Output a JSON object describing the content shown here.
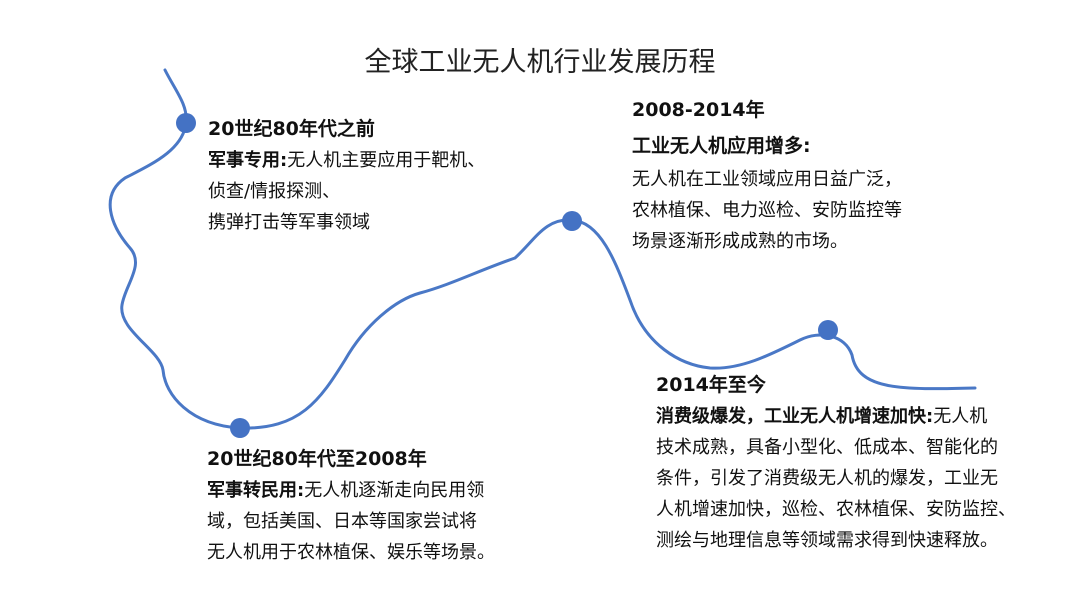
{
  "title": "全球工业无人机行业发展历程",
  "colors": {
    "curve": "#4a78c6",
    "dot": "#4472c4"
  },
  "milestones": [
    {
      "period": "20世纪80年代之前",
      "label": "军事专用:",
      "lines": [
        "无人机主要应用于靶机、",
        "侦查/情报探测、",
        "携弹打击等军事领域"
      ]
    },
    {
      "period": "2008-2014年",
      "label": "工业无人机应用增多:",
      "lines": [
        "无人机在工业领域应用日益广泛，",
        "农林植保、电力巡检、安防监控等",
        "场景逐渐形成成熟的市场。"
      ]
    },
    {
      "period": "20世纪80年代至2008年",
      "label": "军事转民用:",
      "lines": [
        "无人机逐渐走向民用领",
        "域，包括美国、日本等国家尝试将",
        "无人机用于农林植保、娱乐等场景。"
      ]
    },
    {
      "period": "2014年至今",
      "label": "消费级爆发，工业无人机增速加快:",
      "lines": [
        "无人机",
        "技术成熟，具备小型化、低成本、智能化的",
        "条件，引发了消费级无人机的爆发，工业无",
        "人机增速加快，巡检、农林植保、安防监控、",
        "测绘与地理信息等领域需求得到快速释放。"
      ]
    }
  ]
}
